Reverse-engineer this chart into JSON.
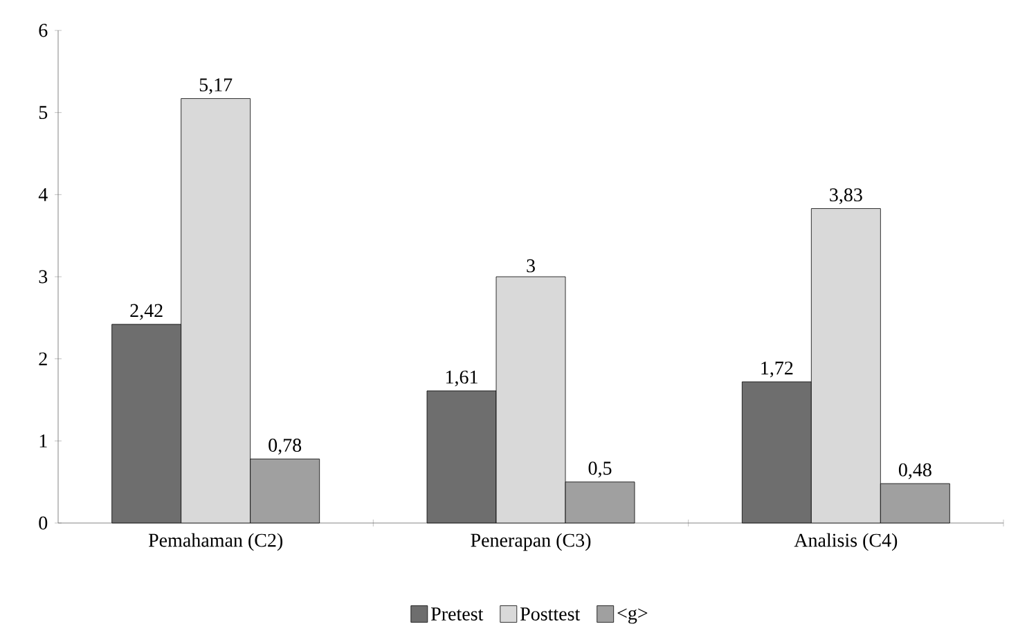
{
  "chart_data": {
    "type": "bar",
    "categories": [
      "Pemahaman (C2)",
      "Penerapan (C3)",
      "Analisis (C4)"
    ],
    "series": [
      {
        "name": "Pretest",
        "color": "#6e6e6e",
        "values": [
          2.42,
          1.61,
          1.72
        ],
        "value_labels": [
          "2,42",
          "1,61",
          "1,72"
        ]
      },
      {
        "name": "Posttest",
        "color": "#d9d9d9",
        "values": [
          5.17,
          3,
          3.83
        ],
        "value_labels": [
          "5,17",
          "3",
          "3,83"
        ]
      },
      {
        "name": "<g>",
        "color": "#a0a0a0",
        "values": [
          0.78,
          0.5,
          0.48
        ],
        "value_labels": [
          "0,78",
          "0,5",
          "0,48"
        ]
      }
    ],
    "ylim": [
      0,
      6
    ],
    "yticks": [
      0,
      1,
      2,
      3,
      4,
      5,
      6
    ],
    "legend": "bottom",
    "grid": false
  }
}
